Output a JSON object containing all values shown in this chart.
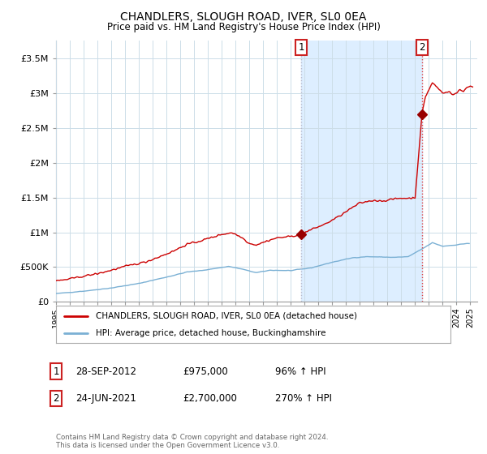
{
  "title": "CHANDLERS, SLOUGH ROAD, IVER, SL0 0EA",
  "subtitle": "Price paid vs. HM Land Registry's House Price Index (HPI)",
  "ylim": [
    0,
    3750000
  ],
  "yticks": [
    0,
    500000,
    1000000,
    1500000,
    2000000,
    2500000,
    3000000,
    3500000
  ],
  "ytick_labels": [
    "£0",
    "£500K",
    "£1M",
    "£1.5M",
    "£2M",
    "£2.5M",
    "£3M",
    "£3.5M"
  ],
  "xlim_start": 1995.0,
  "xlim_end": 2025.5,
  "xtick_years": [
    1995,
    1996,
    1997,
    1998,
    1999,
    2000,
    2001,
    2002,
    2003,
    2004,
    2005,
    2006,
    2007,
    2008,
    2009,
    2010,
    2011,
    2012,
    2013,
    2014,
    2015,
    2016,
    2017,
    2018,
    2019,
    2020,
    2021,
    2022,
    2023,
    2024,
    2025
  ],
  "sale1_x": 2012.75,
  "sale1_y": 975000,
  "sale1_label": "1",
  "sale2_x": 2021.5,
  "sale2_y": 2700000,
  "sale2_label": "2",
  "house_color": "#cc0000",
  "hpi_color": "#7ab0d4",
  "sale_marker_color": "#990000",
  "vline1_color": "#bbbbcc",
  "vline2_color": "#dd4444",
  "shade_color": "#ddeeff",
  "bg_color": "#ffffff",
  "grid_color": "#ccdde8",
  "legend1_label": "CHANDLERS, SLOUGH ROAD, IVER, SL0 0EA (detached house)",
  "legend2_label": "HPI: Average price, detached house, Buckinghamshire",
  "annot1_date": "28-SEP-2012",
  "annot1_price": "£975,000",
  "annot1_hpi": "96% ↑ HPI",
  "annot2_date": "24-JUN-2021",
  "annot2_price": "£2,700,000",
  "annot2_hpi": "270% ↑ HPI",
  "footnote": "Contains HM Land Registry data © Crown copyright and database right 2024.\nThis data is licensed under the Open Government Licence v3.0."
}
